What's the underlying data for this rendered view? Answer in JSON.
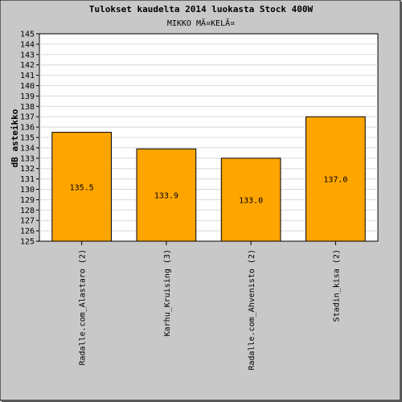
{
  "chart_data": {
    "type": "bar",
    "title": "Tulokset kaudelta 2014 luokasta Stock 400W",
    "subtitle": "MIKKO MÃ¤KELÃ¤",
    "xlabel": "",
    "ylabel": "dB asteikko",
    "categories": [
      "Radalle.com_Alastaro (2)",
      "Karhu_Kruising (3)",
      "Radalle.com_Ahvenisto (2)",
      "Stadin_kisa (2)"
    ],
    "values": [
      135.5,
      133.9,
      133.0,
      137.0
    ],
    "value_labels": [
      "135.5",
      "133.9",
      "133.0",
      "137.0"
    ],
    "ylim": [
      125,
      145
    ],
    "yticks": [
      "125",
      "126",
      "127",
      "128",
      "129",
      "130",
      "131",
      "132",
      "133",
      "134",
      "135",
      "136",
      "137",
      "138",
      "139",
      "140",
      "141",
      "142",
      "143",
      "144",
      "145"
    ],
    "grid": true,
    "legend": "none",
    "colors": {
      "bar": "#ffa500",
      "bar_border": "#000000",
      "frame": "#c8c8c8",
      "plot_bg": "#ffffff",
      "grid": "#d8d8d8"
    }
  }
}
